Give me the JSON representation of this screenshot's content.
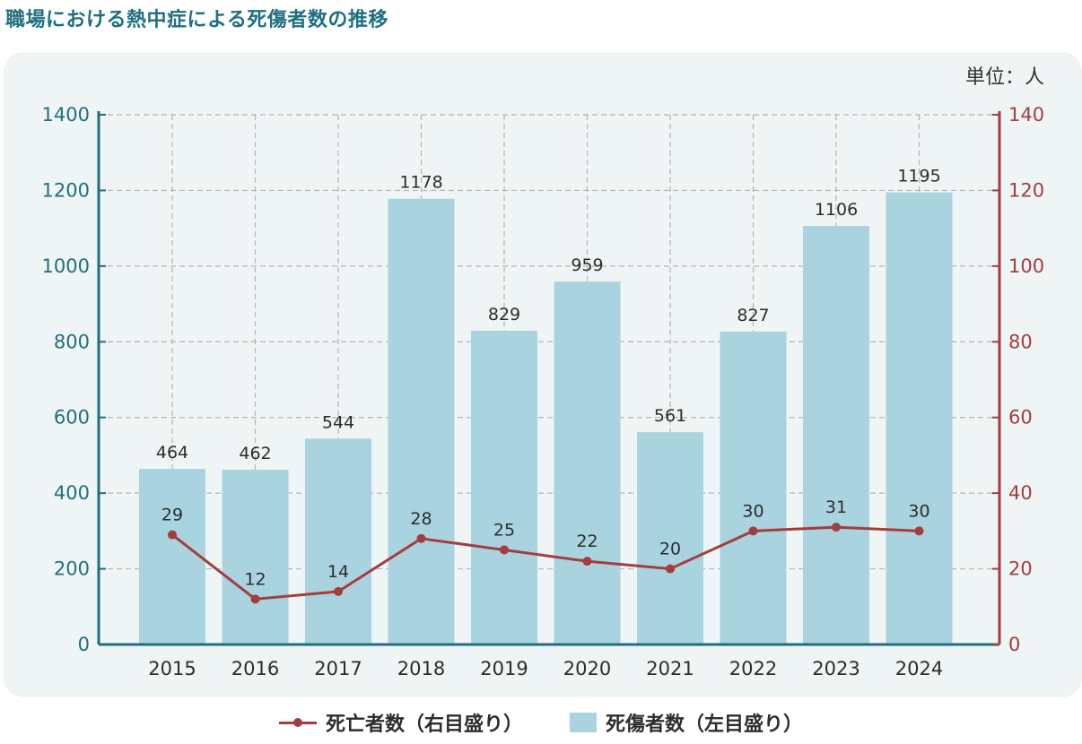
{
  "title": "職場における熱中症による死傷者数の推移",
  "unit_label": "単位：人",
  "legend": {
    "line_label": "死亡者数（右目盛り）",
    "bar_label": "死傷者数（左目盛り）"
  },
  "colors": {
    "bar": "#a9d3df",
    "line": "#a33e3e",
    "left_axis": "#1f6f80",
    "right_axis": "#a33e3e",
    "grid": "#b5b5b5",
    "title": "#1f6f80"
  },
  "chart_data": {
    "type": "bar",
    "categories": [
      "2015",
      "2016",
      "2017",
      "2018",
      "2019",
      "2020",
      "2021",
      "2022",
      "2023",
      "2024"
    ],
    "series": [
      {
        "name": "死傷者数（左目盛り）",
        "type": "bar",
        "axis": "left",
        "values": [
          464,
          462,
          544,
          1178,
          829,
          959,
          561,
          827,
          1106,
          1195
        ]
      },
      {
        "name": "死亡者数（右目盛り）",
        "type": "line",
        "axis": "right",
        "values": [
          29,
          12,
          14,
          28,
          25,
          22,
          20,
          30,
          31,
          30
        ]
      }
    ],
    "left_axis": {
      "min": 0,
      "max": 1400,
      "ticks": [
        0,
        200,
        400,
        600,
        800,
        1000,
        1200,
        1400
      ]
    },
    "right_axis": {
      "min": 0,
      "max": 140,
      "ticks": [
        0,
        20,
        40,
        60,
        80,
        100,
        120,
        140
      ]
    },
    "grid": true,
    "legend_position": "bottom"
  }
}
